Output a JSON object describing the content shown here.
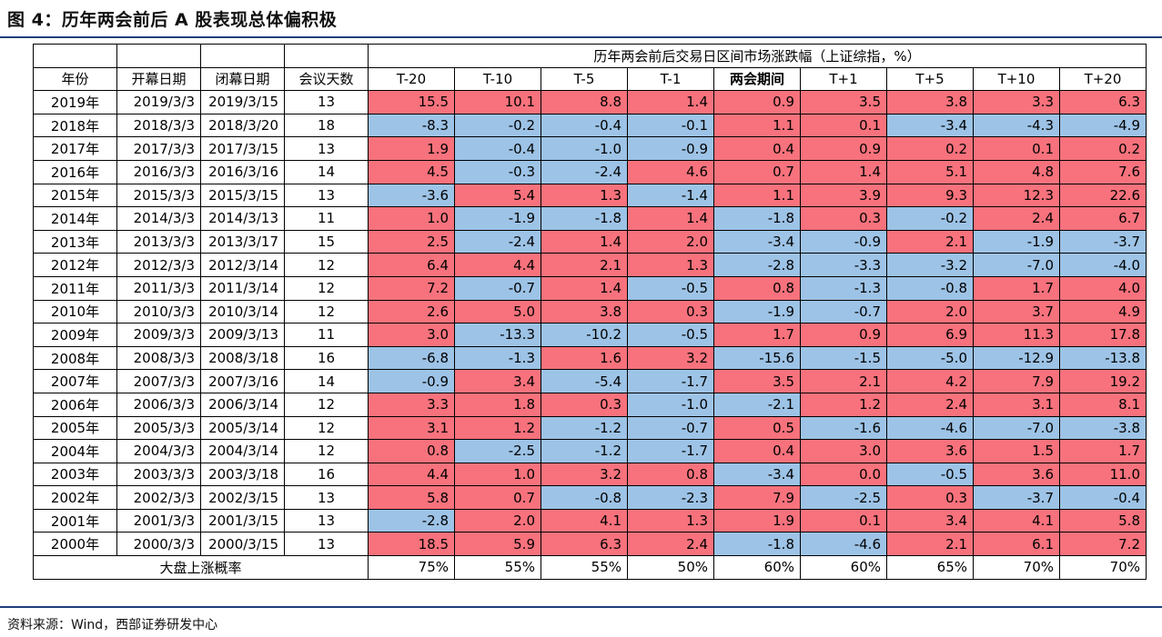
{
  "title": "图 4：历年两会前后 A 股表现总体偏积极",
  "source": "资料来源：Wind，西部证券研发中心",
  "header_group": "历年两会前后交易日区间市场涨跌幅（上证综指，%）",
  "columns": [
    "年份",
    "开幕日期",
    "闭幕日期",
    "会议天数",
    "T-20",
    "T-10",
    "T-5",
    "T-1",
    "两会期间",
    "T+1",
    "T+5",
    "T+10",
    "T+20"
  ],
  "colors": {
    "positive": "#f7727c",
    "negative": "#9dc3e6",
    "rule": "#1f3f7a"
  },
  "rows": [
    {
      "year": "2019年",
      "open": "2019/3/3",
      "close": "2019/3/15",
      "days": "13",
      "vals": [
        "15.5",
        "10.1",
        "8.8",
        "1.4",
        "0.9",
        "3.5",
        "3.8",
        "3.3",
        "6.3"
      ]
    },
    {
      "year": "2018年",
      "open": "2018/3/3",
      "close": "2018/3/20",
      "days": "18",
      "vals": [
        "-8.3",
        "-0.2",
        "-0.4",
        "-0.1",
        "1.1",
        "0.1",
        "-3.4",
        "-4.3",
        "-4.9"
      ]
    },
    {
      "year": "2017年",
      "open": "2017/3/3",
      "close": "2017/3/15",
      "days": "13",
      "vals": [
        "1.9",
        "-0.4",
        "-1.0",
        "-0.9",
        "0.4",
        "0.9",
        "0.2",
        "0.1",
        "0.2"
      ]
    },
    {
      "year": "2016年",
      "open": "2016/3/3",
      "close": "2016/3/16",
      "days": "14",
      "vals": [
        "4.5",
        "-0.3",
        "-2.4",
        "4.6",
        "0.7",
        "1.4",
        "5.1",
        "4.8",
        "7.6"
      ]
    },
    {
      "year": "2015年",
      "open": "2015/3/3",
      "close": "2015/3/15",
      "days": "13",
      "vals": [
        "-3.6",
        "5.4",
        "1.3",
        "-1.4",
        "1.1",
        "3.9",
        "9.3",
        "12.3",
        "22.6"
      ]
    },
    {
      "year": "2014年",
      "open": "2014/3/3",
      "close": "2014/3/13",
      "days": "11",
      "vals": [
        "1.0",
        "-1.9",
        "-1.8",
        "1.4",
        "-1.8",
        "0.3",
        "-0.2",
        "2.4",
        "6.7"
      ]
    },
    {
      "year": "2013年",
      "open": "2013/3/3",
      "close": "2013/3/17",
      "days": "15",
      "vals": [
        "2.5",
        "-2.4",
        "1.4",
        "2.0",
        "-3.4",
        "-0.9",
        "2.1",
        "-1.9",
        "-3.7"
      ]
    },
    {
      "year": "2012年",
      "open": "2012/3/3",
      "close": "2012/3/14",
      "days": "12",
      "vals": [
        "6.4",
        "4.4",
        "2.1",
        "1.3",
        "-2.8",
        "-3.3",
        "-3.2",
        "-7.0",
        "-4.0"
      ]
    },
    {
      "year": "2011年",
      "open": "2011/3/3",
      "close": "2011/3/14",
      "days": "12",
      "vals": [
        "7.2",
        "-0.7",
        "1.4",
        "-0.5",
        "0.8",
        "-1.3",
        "-0.8",
        "1.7",
        "4.0"
      ]
    },
    {
      "year": "2010年",
      "open": "2010/3/3",
      "close": "2010/3/14",
      "days": "12",
      "vals": [
        "2.6",
        "5.0",
        "3.8",
        "0.3",
        "-1.9",
        "-0.7",
        "2.0",
        "3.7",
        "4.9"
      ]
    },
    {
      "year": "2009年",
      "open": "2009/3/3",
      "close": "2009/3/13",
      "days": "11",
      "vals": [
        "3.0",
        "-13.3",
        "-10.2",
        "-0.5",
        "1.7",
        "0.9",
        "6.9",
        "11.3",
        "17.8"
      ]
    },
    {
      "year": "2008年",
      "open": "2008/3/3",
      "close": "2008/3/18",
      "days": "16",
      "vals": [
        "-6.8",
        "-1.3",
        "1.6",
        "3.2",
        "-15.6",
        "-1.5",
        "-5.0",
        "-12.9",
        "-13.8"
      ]
    },
    {
      "year": "2007年",
      "open": "2007/3/3",
      "close": "2007/3/16",
      "days": "14",
      "vals": [
        "-0.9",
        "3.4",
        "-5.4",
        "-1.7",
        "3.5",
        "2.1",
        "4.2",
        "7.9",
        "19.2"
      ]
    },
    {
      "year": "2006年",
      "open": "2006/3/3",
      "close": "2006/3/14",
      "days": "12",
      "vals": [
        "3.3",
        "1.8",
        "0.3",
        "-1.0",
        "-2.1",
        "1.2",
        "2.4",
        "3.1",
        "8.1"
      ]
    },
    {
      "year": "2005年",
      "open": "2005/3/3",
      "close": "2005/3/14",
      "days": "12",
      "vals": [
        "3.1",
        "1.2",
        "-1.2",
        "-0.7",
        "0.5",
        "-1.6",
        "-4.6",
        "-7.0",
        "-3.8"
      ]
    },
    {
      "year": "2004年",
      "open": "2004/3/3",
      "close": "2004/3/14",
      "days": "12",
      "vals": [
        "0.8",
        "-2.5",
        "-1.2",
        "-1.7",
        "0.4",
        "3.0",
        "3.6",
        "1.5",
        "1.7"
      ]
    },
    {
      "year": "2003年",
      "open": "2003/3/3",
      "close": "2003/3/18",
      "days": "16",
      "vals": [
        "4.4",
        "1.0",
        "3.2",
        "0.8",
        "-3.4",
        "0.0",
        "-0.5",
        "3.6",
        "11.0"
      ]
    },
    {
      "year": "2002年",
      "open": "2002/3/3",
      "close": "2002/3/15",
      "days": "13",
      "vals": [
        "5.8",
        "0.7",
        "-0.8",
        "-2.3",
        "7.9",
        "-2.5",
        "0.3",
        "-3.7",
        "-0.4"
      ]
    },
    {
      "year": "2001年",
      "open": "2001/3/3",
      "close": "2001/3/15",
      "days": "13",
      "vals": [
        "-2.8",
        "2.0",
        "4.1",
        "1.3",
        "1.9",
        "0.1",
        "3.4",
        "4.1",
        "5.8"
      ]
    },
    {
      "year": "2000年",
      "open": "2000/3/3",
      "close": "2000/3/15",
      "days": "13",
      "vals": [
        "18.5",
        "5.9",
        "6.3",
        "2.4",
        "-1.8",
        "-4.6",
        "2.1",
        "6.1",
        "7.2"
      ]
    }
  ],
  "summary": {
    "label": "大盘上涨概率",
    "vals": [
      "75%",
      "55%",
      "55%",
      "50%",
      "60%",
      "60%",
      "65%",
      "70%",
      "70%"
    ]
  }
}
